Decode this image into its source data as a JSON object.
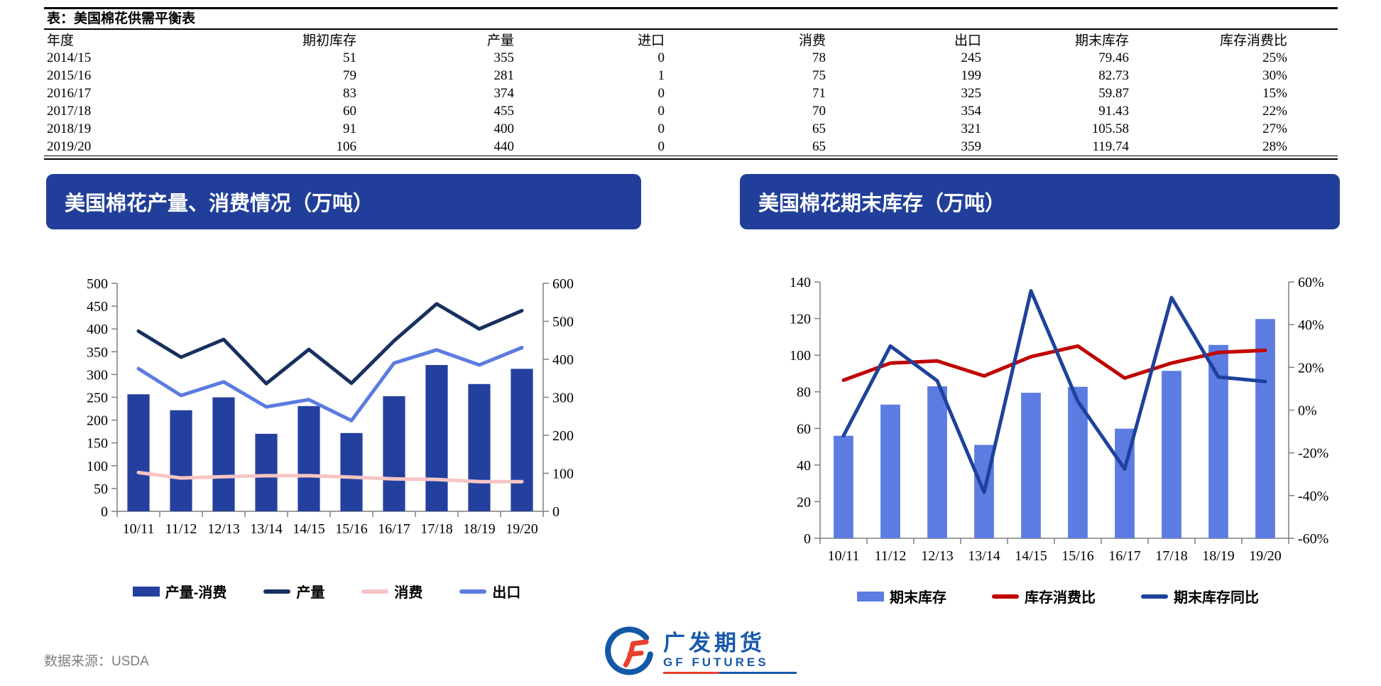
{
  "table": {
    "title": "表：美国棉花供需平衡表",
    "columns": [
      "年度",
      "期初库存",
      "产量",
      "进口",
      "消费",
      "出口",
      "期末库存",
      "库存消费比"
    ],
    "rows": [
      [
        "2014/15",
        "51",
        "355",
        "0",
        "78",
        "245",
        "79.46",
        "25%"
      ],
      [
        "2015/16",
        "79",
        "281",
        "1",
        "75",
        "199",
        "82.73",
        "30%"
      ],
      [
        "2016/17",
        "83",
        "374",
        "0",
        "71",
        "325",
        "59.87",
        "15%"
      ],
      [
        "2017/18",
        "60",
        "455",
        "0",
        "70",
        "354",
        "91.43",
        "22%"
      ],
      [
        "2018/19",
        "91",
        "400",
        "0",
        "65",
        "321",
        "105.58",
        "27%"
      ],
      [
        "2019/20",
        "106",
        "440",
        "0",
        "65",
        "359",
        "119.74",
        "28%"
      ]
    ]
  },
  "chart_data": [
    {
      "type": "bar+line combo",
      "title": "美国棉花产量、消费情况（万吨）",
      "categories": [
        "10/11",
        "11/12",
        "12/13",
        "13/14",
        "14/15",
        "15/16",
        "16/17",
        "17/18",
        "18/19",
        "19/20"
      ],
      "left_axis": {
        "min": 0,
        "max": 500,
        "step": 50,
        "suffix": ""
      },
      "right_axis": {
        "min": 0,
        "max": 600,
        "step": 100,
        "suffix": ""
      },
      "grid": false,
      "legend_position": "bottom",
      "series": [
        {
          "name": "产量-消费",
          "type": "bar",
          "axis": "right",
          "color": "#24409e",
          "values": [
            308,
            266,
            300,
            204,
            277,
            206,
            303,
            385,
            335,
            375
          ]
        },
        {
          "name": "产量",
          "type": "line",
          "axis": "left",
          "color": "#17305e",
          "values": [
            395,
            338,
            377,
            280,
            355,
            281,
            374,
            455,
            400,
            440
          ]
        },
        {
          "name": "消费",
          "type": "line",
          "axis": "left",
          "color": "#f6c5c4",
          "values": [
            85,
            73,
            76,
            78,
            78,
            75,
            71,
            70,
            65,
            65
          ]
        },
        {
          "name": "出口",
          "type": "line",
          "axis": "left",
          "color": "#5b7be0",
          "values": [
            313,
            254,
            284,
            229,
            245,
            199,
            325,
            354,
            321,
            359
          ]
        }
      ]
    },
    {
      "type": "bar+line combo",
      "title": "美国棉花期末库存（万吨）",
      "categories": [
        "10/11",
        "11/12",
        "12/13",
        "13/14",
        "14/15",
        "15/16",
        "16/17",
        "17/18",
        "18/19",
        "19/20"
      ],
      "left_axis": {
        "min": 0,
        "max": 140,
        "step": 20,
        "suffix": ""
      },
      "right_axis": {
        "min": -60,
        "max": 60,
        "step": 20,
        "suffix": "%"
      },
      "grid": false,
      "legend_position": "bottom",
      "series": [
        {
          "name": "期末库存",
          "type": "bar",
          "axis": "left",
          "color": "#5c7ce2",
          "values": [
            56,
            73,
            83,
            51,
            79.46,
            82.73,
            59.87,
            91.43,
            105.58,
            119.74
          ]
        },
        {
          "name": "库存消费比",
          "type": "line",
          "axis": "right",
          "color": "#c00000",
          "values": [
            14,
            22,
            23,
            16,
            25,
            30,
            15,
            22,
            27,
            28
          ]
        },
        {
          "name": "期末库存同比",
          "type": "line",
          "axis": "right",
          "color": "#1e429b",
          "values": [
            -12,
            30,
            13.7,
            -38.5,
            55.8,
            4.1,
            -27.6,
            52.7,
            15.5,
            13.4
          ]
        }
      ]
    }
  ],
  "footer": {
    "source": "数据来源：USDA",
    "logo_cn": "广发期货",
    "logo_en": "GF FUTURES"
  }
}
